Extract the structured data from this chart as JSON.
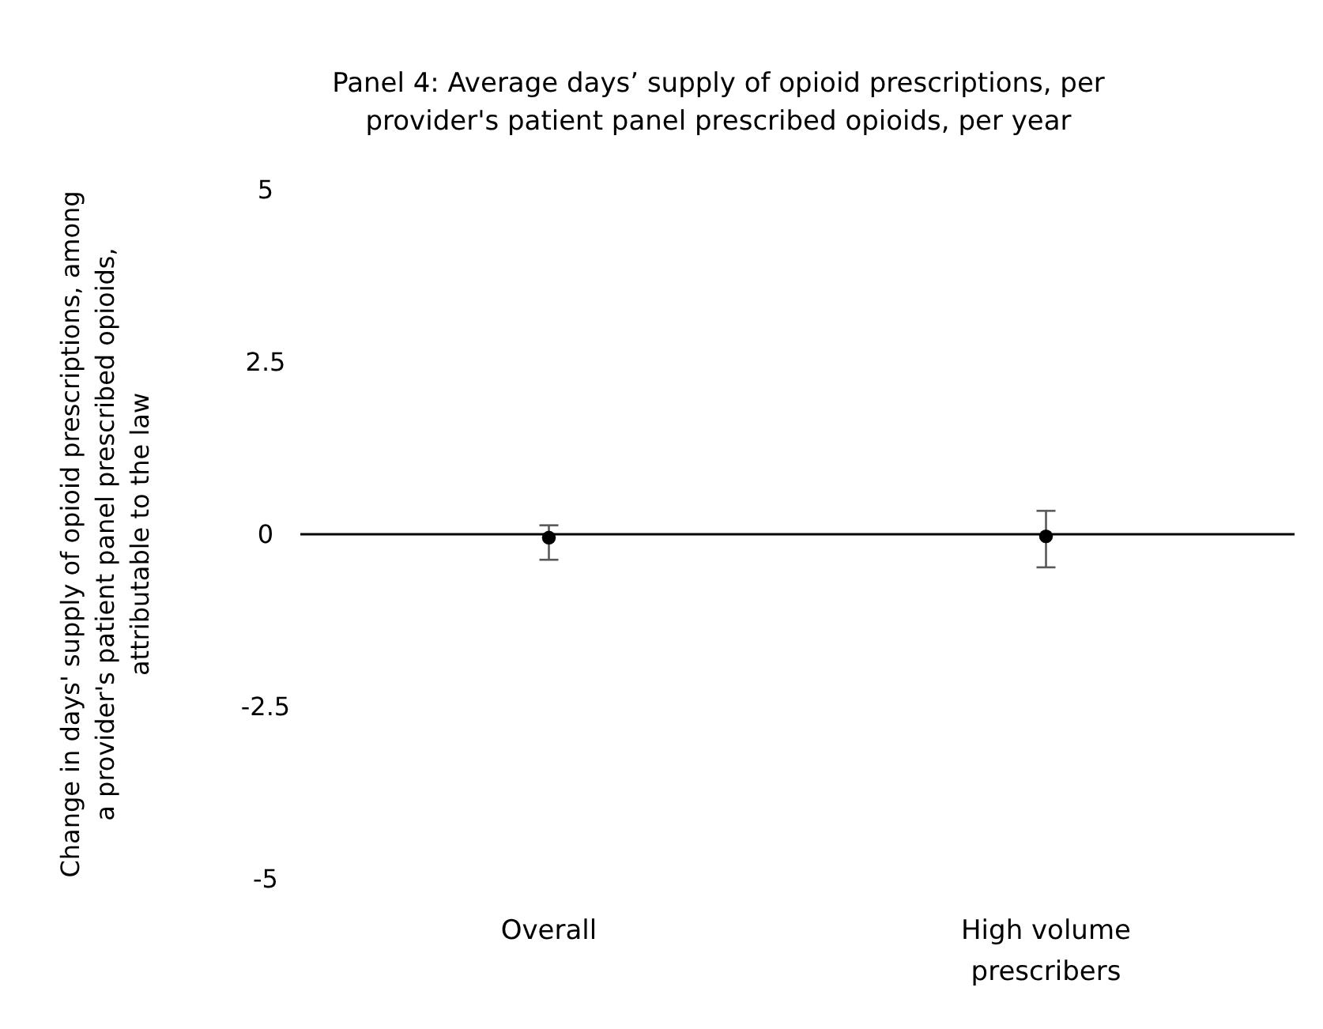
{
  "chart_data": {
    "type": "scatter",
    "title": "Panel 4: Average days’ supply of opioid prescriptions, per provider's patient panel prescribed opioids, per year",
    "ylabel": "Change in days' supply of opioid prescriptions, among a provider's patient panel prescribed  opioids, attributable to the law",
    "categories": [
      "Overall",
      "High volume prescribers"
    ],
    "values": [
      -0.05,
      -0.03
    ],
    "errors": [
      [
        -0.32,
        0.18
      ],
      [
        -0.45,
        0.37
      ]
    ],
    "color": "#000000",
    "marker": "circle",
    "ylim": [
      -5,
      5
    ],
    "yticks": [
      -5,
      -2.5,
      0,
      2.5,
      5
    ]
  }
}
